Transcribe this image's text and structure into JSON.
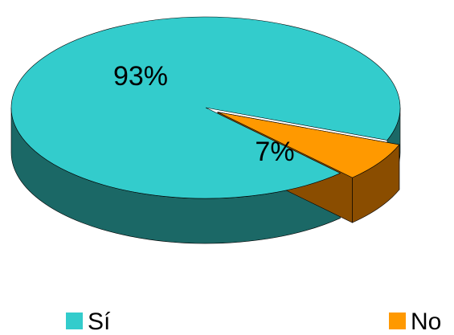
{
  "chart_data": {
    "type": "pie",
    "style": "3d",
    "title": "",
    "categories": [
      "Sí",
      "No"
    ],
    "values": [
      93,
      7
    ],
    "data_labels": [
      "93%",
      "7%"
    ],
    "colors": [
      "#33CCCC",
      "#FF9900"
    ],
    "side_colors": [
      "#1B6866",
      "#8A4D00"
    ],
    "legend": {
      "position": "bottom",
      "entries": [
        "Sí",
        "No"
      ]
    }
  }
}
